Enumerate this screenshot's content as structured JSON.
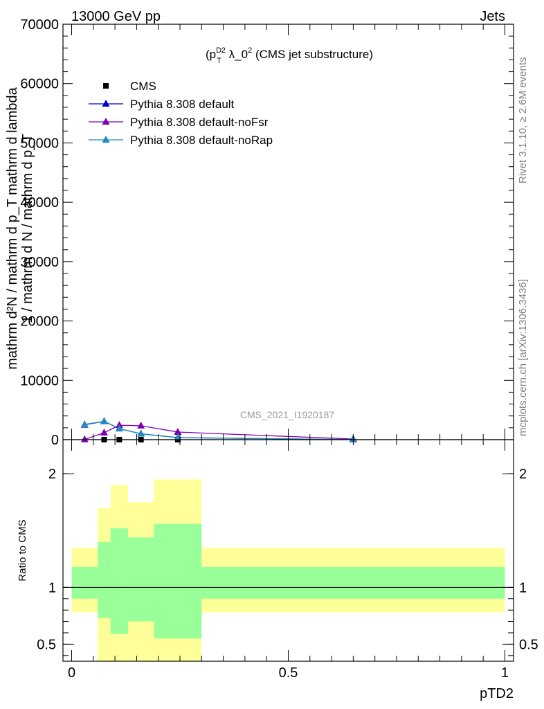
{
  "header": {
    "left": "13000 GeV pp",
    "right": "Jets"
  },
  "plot_title": "(p_T^D)^2 λ_0^2 (CMS jet substructure)",
  "side_text": {
    "rivet": "Rivet 3.1.10, ≥ 2.6M events",
    "mcplots": "mcplots.cern.ch [arXiv:1306.3436]"
  },
  "watermark": "CMS_2021_I1920187",
  "ylabel_main": "1 / mathrm d N / mathrm d p_T mathrm d^2N / mathrm d p_T mathrm d lambda",
  "ylabel_ratio": "Ratio to CMS",
  "xlabel": "pTD2",
  "chart_data": [
    {
      "type": "line",
      "xlim": [
        -0.02,
        1.02
      ],
      "ylim": [
        0,
        70000
      ],
      "y_ticks": [
        0,
        10000,
        20000,
        30000,
        40000,
        50000,
        60000,
        70000
      ],
      "y_tick_labels": [
        "0",
        "10000",
        "20000",
        "30000",
        "40000",
        "50000",
        "60000",
        "70000"
      ],
      "legend_position": "top-left",
      "series": [
        {
          "name": "CMS",
          "color": "#000000",
          "marker": "square",
          "x": [
            0.075,
            0.11,
            0.16,
            0.245
          ],
          "y": [
            0,
            0,
            0,
            0
          ]
        },
        {
          "name": "Pythia 8.308 default",
          "color": "#0000cc",
          "marker": "triangle",
          "x": [
            0.03,
            0.075,
            0.11,
            0.16,
            0.245,
            0.65
          ],
          "y": [
            2500,
            3080,
            1850,
            990,
            340,
            10
          ]
        },
        {
          "name": "Pythia 8.308 default-noFsr",
          "color": "#7b00b4",
          "marker": "triangle",
          "x": [
            0.03,
            0.075,
            0.11,
            0.16,
            0.245,
            0.65
          ],
          "y": [
            30,
            1170,
            2430,
            2350,
            1280,
            110
          ]
        },
        {
          "name": "Pythia 8.308 default-noRap",
          "color": "#1f8bbf",
          "marker": "triangle",
          "x": [
            0.03,
            0.075,
            0.11,
            0.16,
            0.245,
            0.65
          ],
          "y": [
            2570,
            3100,
            1870,
            970,
            350,
            12
          ]
        }
      ]
    },
    {
      "type": "area",
      "ylim": [
        0.35,
        2.3
      ],
      "xlim": [
        -0.02,
        1.02
      ],
      "x_ticks": [
        0,
        0.5,
        1
      ],
      "x_tick_labels": [
        "0",
        "0.5",
        "1"
      ],
      "y_ticks": [
        0.5,
        1,
        2
      ],
      "y_tick_labels": [
        "0.5",
        "1",
        "2"
      ],
      "reference_line": 1,
      "bins": [
        0,
        0.06,
        0.09,
        0.13,
        0.19,
        0.3,
        1.0
      ],
      "band_yellow": {
        "color": "#ffff99",
        "low": [
          0.78,
          0.35,
          0.35,
          0.35,
          0.35,
          0.78
        ],
        "high": [
          1.35,
          1.7,
          1.9,
          1.75,
          1.95,
          1.35
        ]
      },
      "band_green": {
        "color": "#99ff99",
        "low": [
          0.9,
          0.73,
          0.59,
          0.7,
          0.55,
          0.9
        ],
        "high": [
          1.18,
          1.4,
          1.52,
          1.44,
          1.56,
          1.18
        ]
      }
    }
  ]
}
